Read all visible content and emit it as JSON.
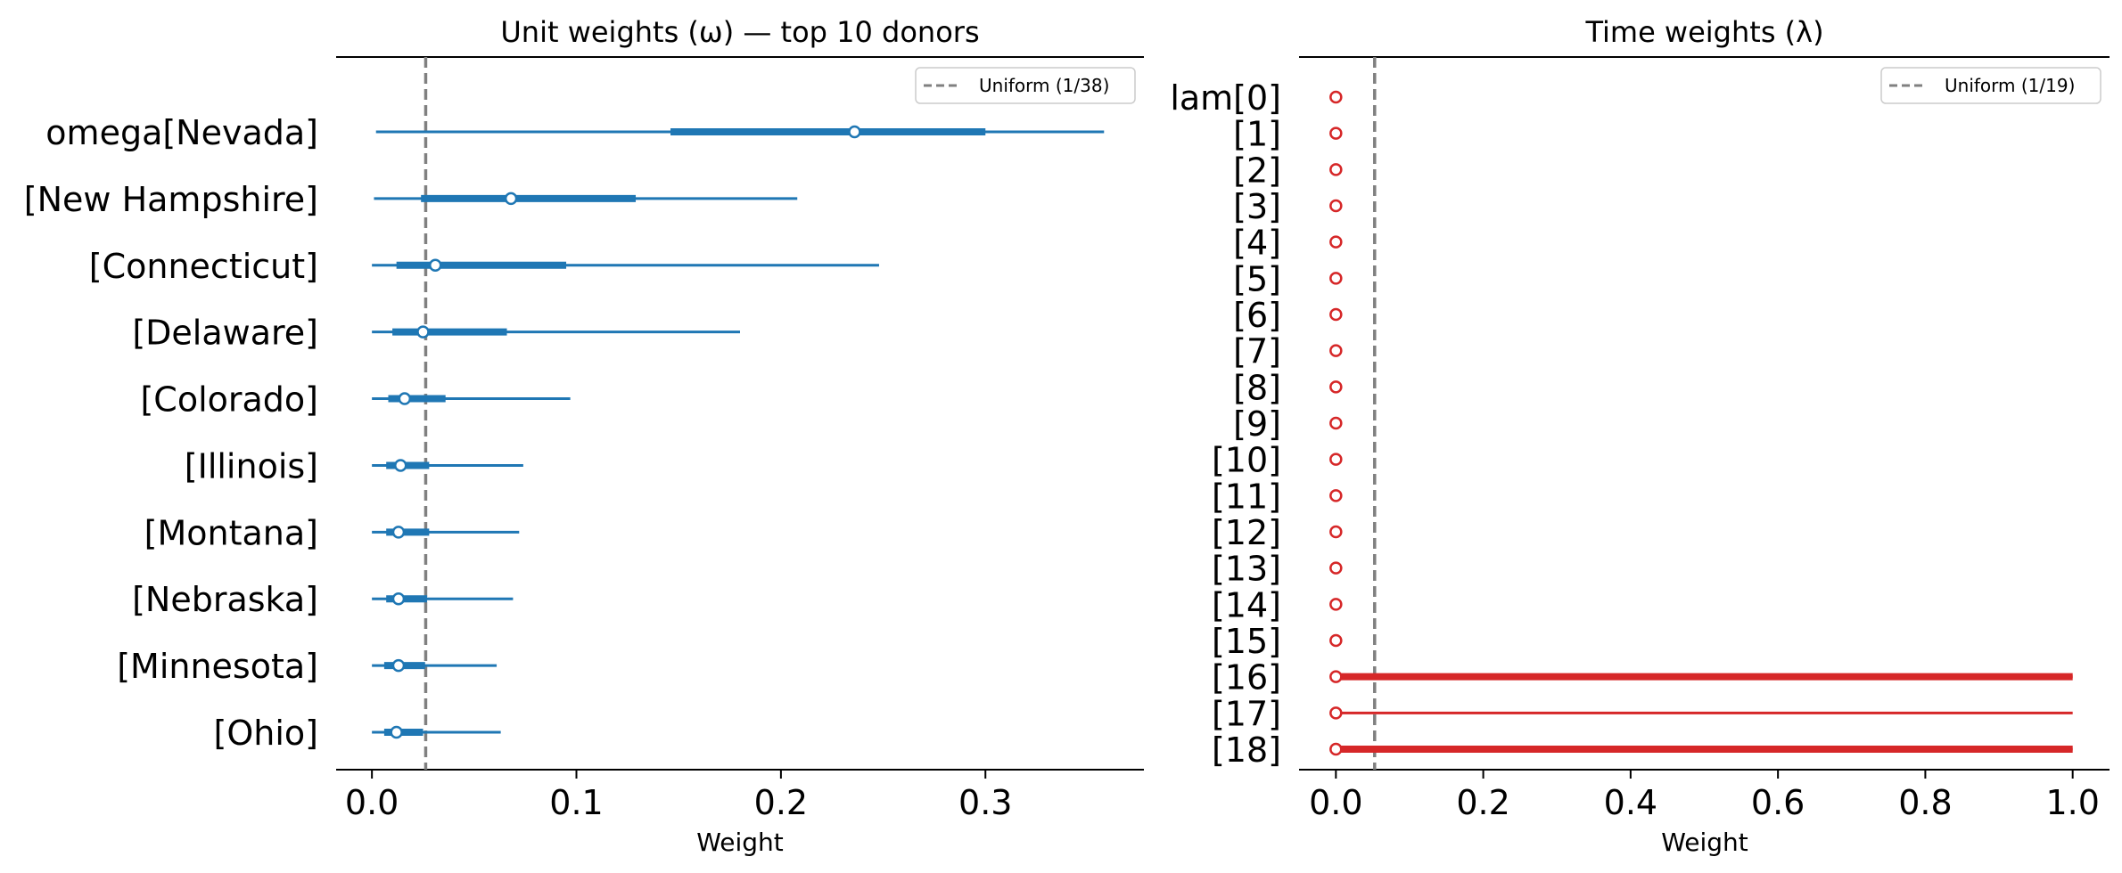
{
  "chart_data": [
    {
      "type": "forest",
      "title": "Unit weights (ω) — top 10 donors",
      "xlabel": "Weight",
      "xlim": [
        -0.0175,
        0.3775
      ],
      "xticks": [
        0.0,
        0.1,
        0.2,
        0.3
      ],
      "xtick_labels": [
        "0.0",
        "0.1",
        "0.2",
        "0.3"
      ],
      "color": "#1f77b4",
      "legend": {
        "label": "Uniform (1/38)",
        "position": "top-right",
        "color": "#808080"
      },
      "reference_line": 0.0263,
      "rows": [
        {
          "label": "omega[Nevada]",
          "mean": 0.236,
          "hdi_low": 0.002,
          "hdi_high": 0.358,
          "iqr_low": 0.146,
          "iqr_high": 0.3
        },
        {
          "label": "[New Hampshire]",
          "mean": 0.068,
          "hdi_low": 0.001,
          "hdi_high": 0.208,
          "iqr_low": 0.024,
          "iqr_high": 0.129
        },
        {
          "label": "[Connecticut]",
          "mean": 0.031,
          "hdi_low": 0.0,
          "hdi_high": 0.248,
          "iqr_low": 0.012,
          "iqr_high": 0.095
        },
        {
          "label": "[Delaware]",
          "mean": 0.025,
          "hdi_low": 0.0,
          "hdi_high": 0.18,
          "iqr_low": 0.01,
          "iqr_high": 0.066
        },
        {
          "label": "[Colorado]",
          "mean": 0.016,
          "hdi_low": 0.0,
          "hdi_high": 0.097,
          "iqr_low": 0.008,
          "iqr_high": 0.036
        },
        {
          "label": "[Illinois]",
          "mean": 0.014,
          "hdi_low": 0.0,
          "hdi_high": 0.074,
          "iqr_low": 0.007,
          "iqr_high": 0.028
        },
        {
          "label": "[Montana]",
          "mean": 0.013,
          "hdi_low": 0.0,
          "hdi_high": 0.072,
          "iqr_low": 0.007,
          "iqr_high": 0.028
        },
        {
          "label": "[Nebraska]",
          "mean": 0.013,
          "hdi_low": 0.0,
          "hdi_high": 0.069,
          "iqr_low": 0.007,
          "iqr_high": 0.027
        },
        {
          "label": "[Minnesota]",
          "mean": 0.013,
          "hdi_low": 0.0,
          "hdi_high": 0.061,
          "iqr_low": 0.006,
          "iqr_high": 0.026
        },
        {
          "label": "[Ohio]",
          "mean": 0.012,
          "hdi_low": 0.0,
          "hdi_high": 0.063,
          "iqr_low": 0.006,
          "iqr_high": 0.025
        }
      ]
    },
    {
      "type": "forest",
      "title": "Time weights (λ)",
      "xlabel": "Weight",
      "xlim": [
        -0.05,
        1.05
      ],
      "xticks": [
        0.0,
        0.2,
        0.4,
        0.6,
        0.8,
        1.0
      ],
      "xtick_labels": [
        "0.0",
        "0.2",
        "0.4",
        "0.6",
        "0.8",
        "1.0"
      ],
      "color": "#d62728",
      "legend": {
        "label": "Uniform (1/19)",
        "position": "top-right",
        "color": "#808080"
      },
      "reference_line": 0.0526,
      "rows": [
        {
          "label": "lam[0]",
          "mean": 0.0,
          "hdi_low": 0.0,
          "hdi_high": 0.0,
          "iqr_low": 0.0,
          "iqr_high": 0.0
        },
        {
          "label": "[1]",
          "mean": 0.0,
          "hdi_low": 0.0,
          "hdi_high": 0.0,
          "iqr_low": 0.0,
          "iqr_high": 0.0
        },
        {
          "label": "[2]",
          "mean": 0.0,
          "hdi_low": 0.0,
          "hdi_high": 0.0,
          "iqr_low": 0.0,
          "iqr_high": 0.0
        },
        {
          "label": "[3]",
          "mean": 0.0,
          "hdi_low": 0.0,
          "hdi_high": 0.0,
          "iqr_low": 0.0,
          "iqr_high": 0.0
        },
        {
          "label": "[4]",
          "mean": 0.0,
          "hdi_low": 0.0,
          "hdi_high": 0.0,
          "iqr_low": 0.0,
          "iqr_high": 0.0
        },
        {
          "label": "[5]",
          "mean": 0.0,
          "hdi_low": 0.0,
          "hdi_high": 0.0,
          "iqr_low": 0.0,
          "iqr_high": 0.0
        },
        {
          "label": "[6]",
          "mean": 0.0,
          "hdi_low": 0.0,
          "hdi_high": 0.0,
          "iqr_low": 0.0,
          "iqr_high": 0.0
        },
        {
          "label": "[7]",
          "mean": 0.0,
          "hdi_low": 0.0,
          "hdi_high": 0.0,
          "iqr_low": 0.0,
          "iqr_high": 0.0
        },
        {
          "label": "[8]",
          "mean": 0.0,
          "hdi_low": 0.0,
          "hdi_high": 0.0,
          "iqr_low": 0.0,
          "iqr_high": 0.0
        },
        {
          "label": "[9]",
          "mean": 0.0,
          "hdi_low": 0.0,
          "hdi_high": 0.0,
          "iqr_low": 0.0,
          "iqr_high": 0.0
        },
        {
          "label": "[10]",
          "mean": 0.0,
          "hdi_low": 0.0,
          "hdi_high": 0.0,
          "iqr_low": 0.0,
          "iqr_high": 0.0
        },
        {
          "label": "[11]",
          "mean": 0.0,
          "hdi_low": 0.0,
          "hdi_high": 0.0,
          "iqr_low": 0.0,
          "iqr_high": 0.0
        },
        {
          "label": "[12]",
          "mean": 0.0,
          "hdi_low": 0.0,
          "hdi_high": 0.0,
          "iqr_low": 0.0,
          "iqr_high": 0.0
        },
        {
          "label": "[13]",
          "mean": 0.0,
          "hdi_low": 0.0,
          "hdi_high": 0.0,
          "iqr_low": 0.0,
          "iqr_high": 0.0
        },
        {
          "label": "[14]",
          "mean": 0.0,
          "hdi_low": 0.0,
          "hdi_high": 0.0,
          "iqr_low": 0.0,
          "iqr_high": 0.0
        },
        {
          "label": "[15]",
          "mean": 0.0,
          "hdi_low": 0.0,
          "hdi_high": 0.0,
          "iqr_low": 0.0,
          "iqr_high": 0.0
        },
        {
          "label": "[16]",
          "mean": 0.0,
          "hdi_low": 0.0,
          "hdi_high": 1.0,
          "iqr_low": 0.0,
          "iqr_high": 1.0
        },
        {
          "label": "[17]",
          "mean": 0.0,
          "hdi_low": 0.0,
          "hdi_high": 1.0,
          "iqr_low": 0.0,
          "iqr_high": 0.0
        },
        {
          "label": "[18]",
          "mean": 0.0,
          "hdi_low": 0.0,
          "hdi_high": 1.0,
          "iqr_low": 0.0,
          "iqr_high": 1.0
        }
      ]
    }
  ]
}
